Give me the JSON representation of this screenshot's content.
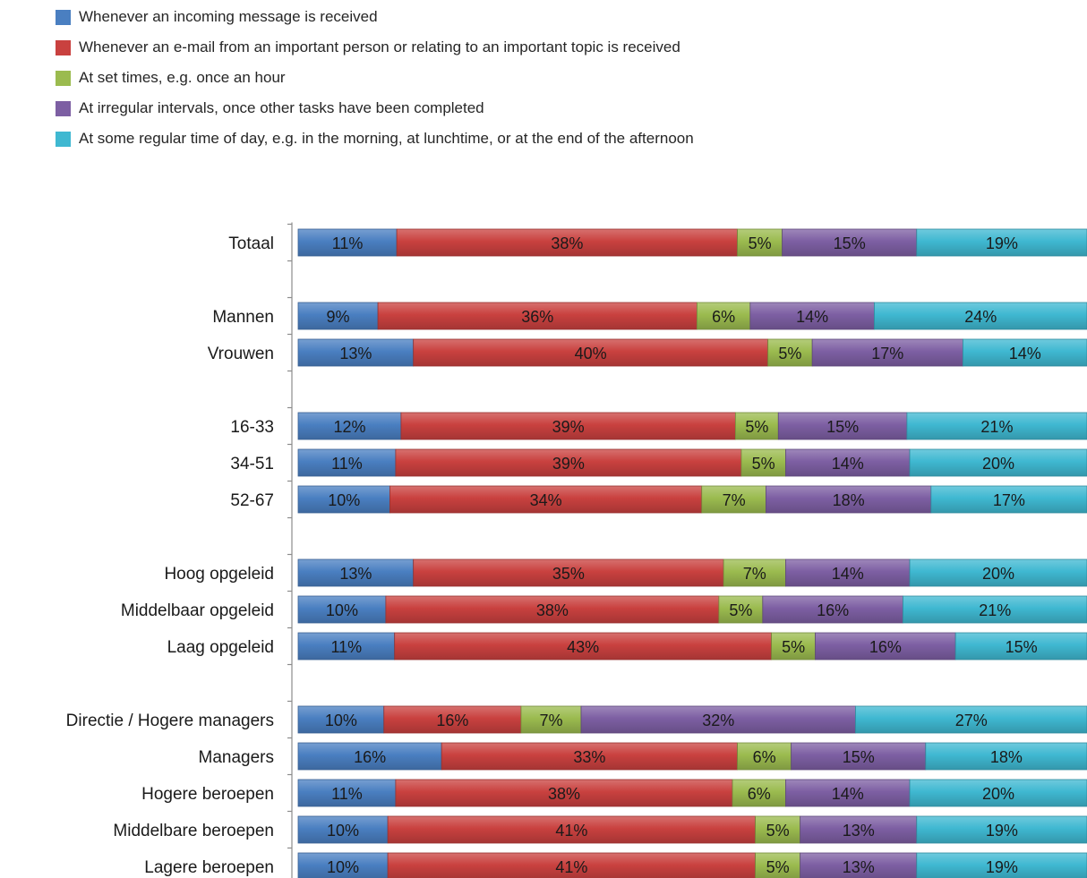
{
  "chart_data": {
    "type": "bar",
    "orientation": "horizontal",
    "stacked": "100%",
    "legend_position": "top-left",
    "categories": [
      "Totaal",
      "",
      "Mannen",
      "Vrouwen",
      "",
      "16-33",
      "34-51",
      "52-67",
      "",
      "Hoog opgeleid",
      "Middelbaar opgeleid",
      "Laag opgeleid",
      "",
      "Directie / Hogere managers",
      "Managers",
      "Hogere beroepen",
      "Middelbare beroepen",
      "Lagere beroepen"
    ],
    "series": [
      {
        "name": "Whenever an incoming message is received",
        "color": "#4a7fc1",
        "values": [
          11,
          null,
          9,
          13,
          null,
          12,
          11,
          10,
          null,
          13,
          10,
          11,
          null,
          10,
          16,
          11,
          10,
          10
        ]
      },
      {
        "name": "Whenever an e-mail from an important person or relating to an important topic is received",
        "color": "#c9413f",
        "values": [
          38,
          null,
          36,
          40,
          null,
          39,
          39,
          34,
          null,
          35,
          38,
          43,
          null,
          16,
          33,
          38,
          41,
          41
        ]
      },
      {
        "name": "At set times, e.g. once an hour",
        "color": "#9bbb4f",
        "values": [
          5,
          null,
          6,
          5,
          null,
          5,
          5,
          7,
          null,
          7,
          5,
          5,
          null,
          7,
          6,
          6,
          5,
          5
        ]
      },
      {
        "name": "At irregular intervals, once other tasks have been completed",
        "color": "#7d5fa3",
        "values": [
          15,
          null,
          14,
          17,
          null,
          15,
          14,
          18,
          null,
          14,
          16,
          16,
          null,
          32,
          15,
          14,
          13,
          13
        ]
      },
      {
        "name": "At some regular time of day, e.g. in the morning, at lunchtime, or at the end of the afternoon",
        "color": "#3fb8d1",
        "values": [
          19,
          null,
          24,
          14,
          null,
          21,
          20,
          17,
          null,
          20,
          21,
          15,
          null,
          27,
          18,
          20,
          19,
          19
        ]
      }
    ],
    "value_suffix": "%"
  }
}
